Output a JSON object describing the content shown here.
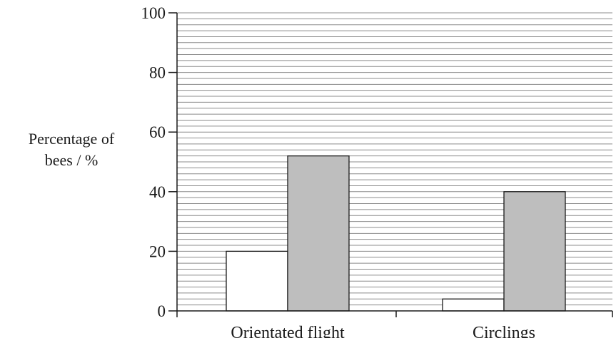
{
  "chart_data": {
    "type": "bar",
    "categories": [
      "Orientated flight",
      "Circlings"
    ],
    "series": [
      {
        "values": [
          20,
          4
        ],
        "color": "#ffffff"
      },
      {
        "values": [
          52,
          40
        ],
        "color": "#bebebe"
      }
    ],
    "ylabel_line1": "Percentage of",
    "ylabel_line2": "bees / %",
    "ylim": [
      0,
      100
    ],
    "yticks": [
      "0",
      "20",
      "40",
      "60",
      "80",
      "100"
    ],
    "ytick_values": [
      0,
      20,
      40,
      60,
      80,
      100
    ],
    "grid": true,
    "minor_grid_step": 2
  }
}
